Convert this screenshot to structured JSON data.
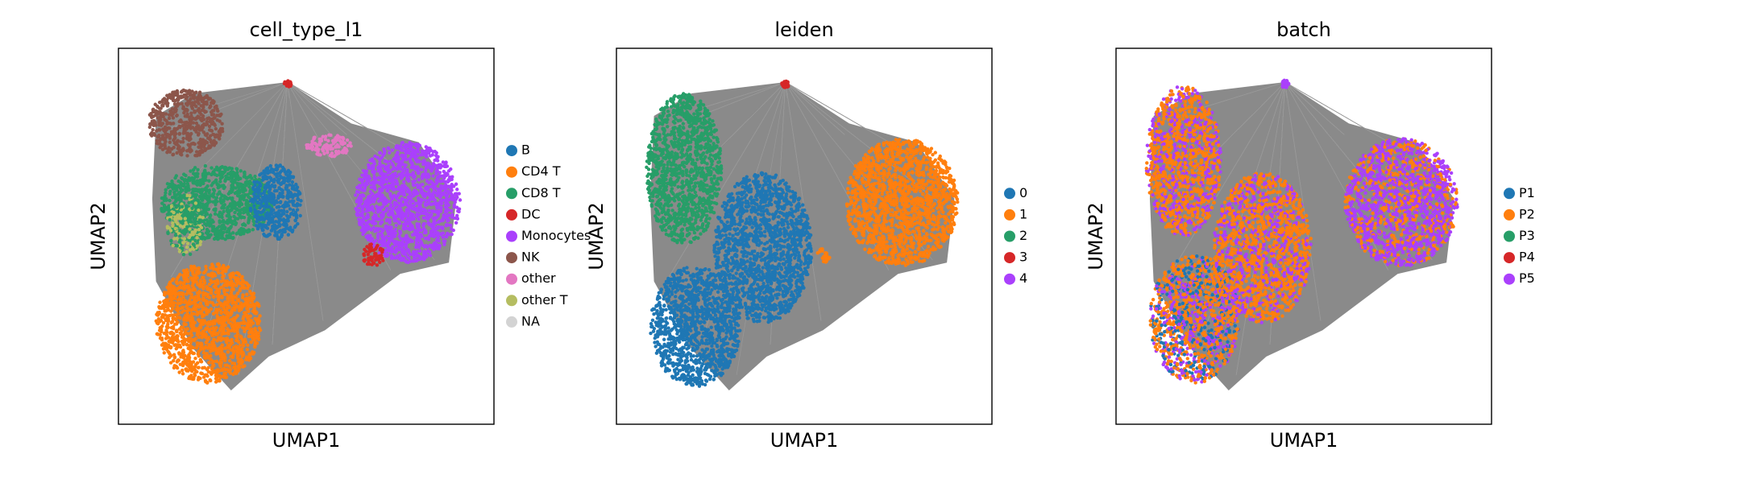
{
  "chart_data": [
    {
      "type": "scatter",
      "title": "cell_type_l1",
      "xlabel": "UMAP1",
      "ylabel": "UMAP2",
      "series": [
        {
          "name": "B",
          "color": "#1f77b4"
        },
        {
          "name": "CD4 T",
          "color": "#ff7f0e"
        },
        {
          "name": "CD8 T",
          "color": "#279e68"
        },
        {
          "name": "DC",
          "color": "#d62728"
        },
        {
          "name": "Monocytes",
          "color": "#aa40fc"
        },
        {
          "name": "NK",
          "color": "#8c564b"
        },
        {
          "name": "other",
          "color": "#e377c2"
        },
        {
          "name": "other T",
          "color": "#b5bd61"
        },
        {
          "name": "NA",
          "color": "#d3d3d3"
        }
      ]
    },
    {
      "type": "scatter",
      "title": "leiden",
      "xlabel": "UMAP1",
      "ylabel": "UMAP2",
      "series": [
        {
          "name": "0",
          "color": "#1f77b4"
        },
        {
          "name": "1",
          "color": "#ff7f0e"
        },
        {
          "name": "2",
          "color": "#279e68"
        },
        {
          "name": "3",
          "color": "#d62728"
        },
        {
          "name": "4",
          "color": "#aa40fc"
        }
      ]
    },
    {
      "type": "scatter",
      "title": "batch",
      "xlabel": "UMAP1",
      "ylabel": "UMAP2",
      "series": [
        {
          "name": "P1",
          "color": "#1f77b4"
        },
        {
          "name": "P2",
          "color": "#ff7f0e"
        },
        {
          "name": "P3",
          "color": "#279e68"
        },
        {
          "name": "P4",
          "color": "#d62728"
        },
        {
          "name": "P5",
          "color": "#aa40fc"
        }
      ]
    }
  ]
}
